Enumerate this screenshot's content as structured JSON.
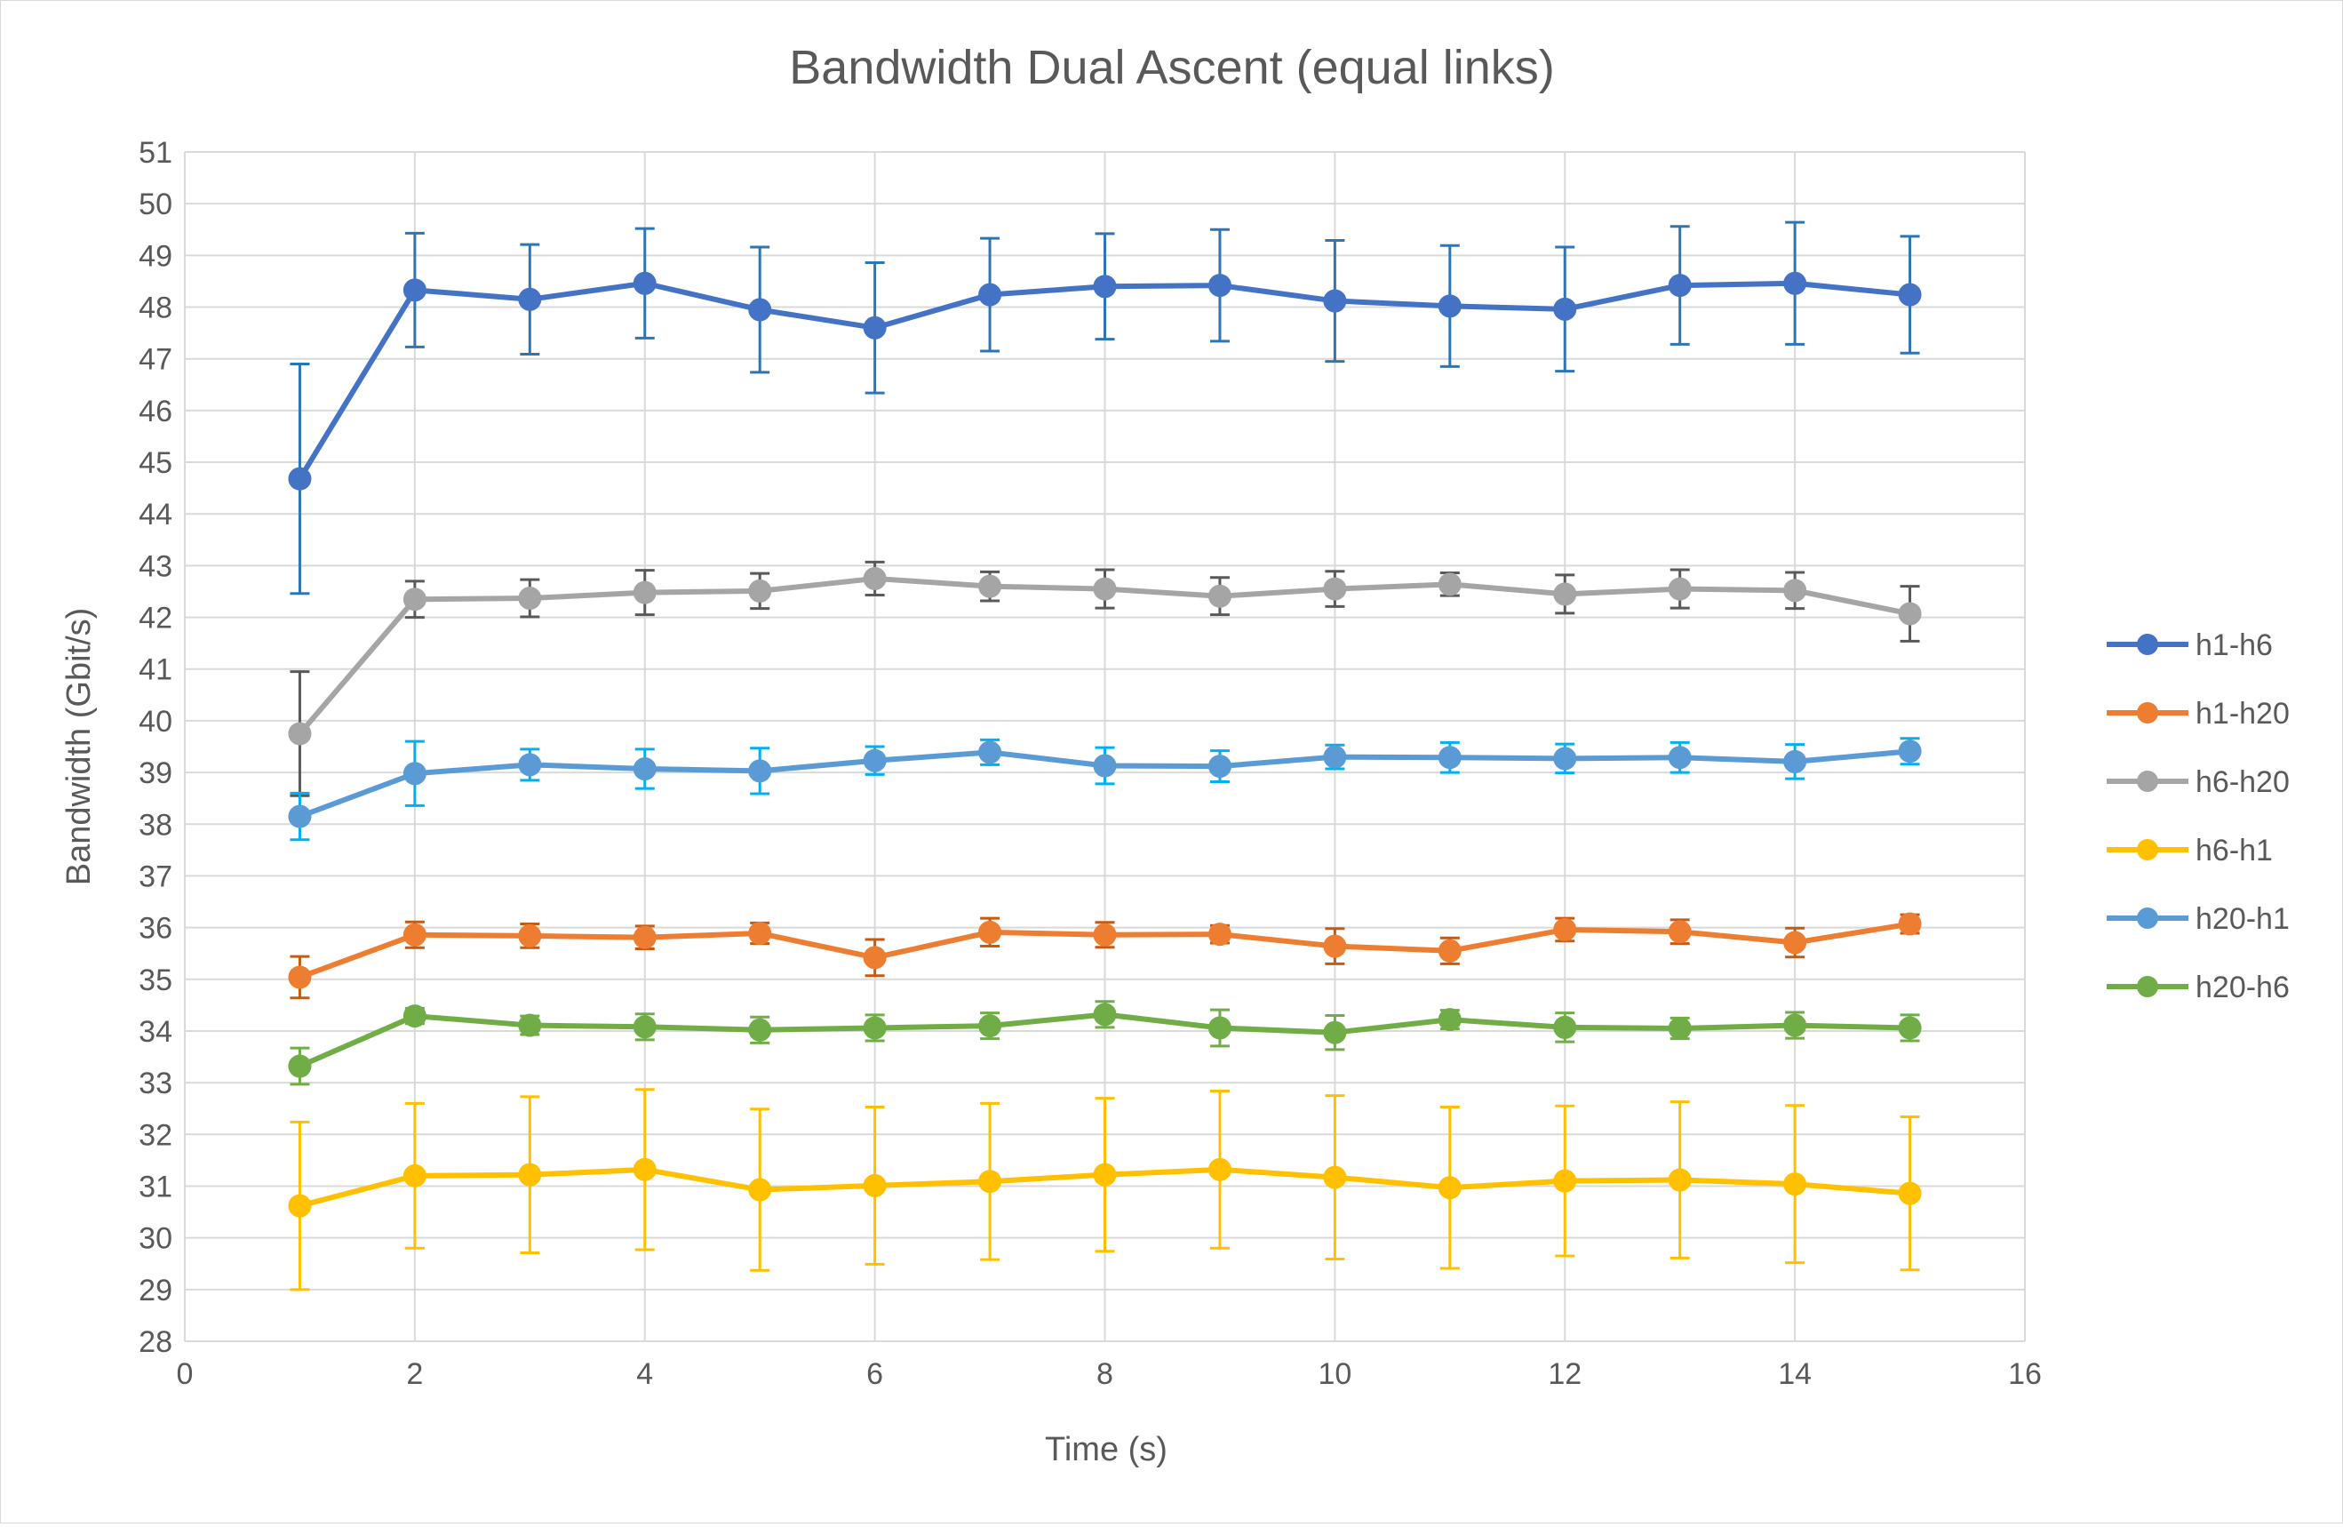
{
  "chart_data": {
    "type": "line",
    "title": "Bandwidth Dual Ascent (equal links)",
    "xlabel": "Time (s)",
    "ylabel": "Bandwidth (Gbit/s)",
    "xlim": [
      0,
      16
    ],
    "ylim": [
      28,
      51
    ],
    "xticks": [
      0,
      2,
      4,
      6,
      8,
      10,
      12,
      14,
      16
    ],
    "yticks": [
      28,
      29,
      30,
      31,
      32,
      33,
      34,
      35,
      36,
      37,
      38,
      39,
      40,
      41,
      42,
      43,
      44,
      45,
      46,
      47,
      48,
      49,
      50,
      51
    ],
    "grid": true,
    "legend_position": "right",
    "x": [
      1,
      2,
      3,
      4,
      5,
      6,
      7,
      8,
      9,
      10,
      11,
      12,
      13,
      14,
      15
    ],
    "series": [
      {
        "name": "h1-h6",
        "color": "#4472C4",
        "error_color": "#2E75B6",
        "values": [
          44.68,
          48.33,
          48.15,
          48.46,
          47.95,
          47.6,
          48.24,
          48.4,
          48.42,
          48.12,
          48.02,
          47.96,
          48.42,
          48.46,
          48.24
        ],
        "error": [
          2.22,
          1.1,
          1.06,
          1.06,
          1.21,
          1.26,
          1.09,
          1.02,
          1.08,
          1.17,
          1.17,
          1.2,
          1.14,
          1.18,
          1.13
        ]
      },
      {
        "name": "h1-h20",
        "color": "#ED7D31",
        "error_color": "#C55A11",
        "values": [
          35.04,
          35.86,
          35.84,
          35.81,
          35.89,
          35.42,
          35.91,
          35.86,
          35.87,
          35.64,
          35.55,
          35.96,
          35.92,
          35.71,
          36.07
        ],
        "error": [
          0.4,
          0.25,
          0.23,
          0.22,
          0.2,
          0.35,
          0.27,
          0.24,
          0.17,
          0.34,
          0.25,
          0.22,
          0.23,
          0.28,
          0.18
        ]
      },
      {
        "name": "h6-h20",
        "color": "#A5A5A5",
        "error_color": "#595959",
        "values": [
          39.75,
          42.35,
          42.37,
          42.48,
          42.51,
          42.75,
          42.6,
          42.55,
          42.41,
          42.55,
          42.64,
          42.45,
          42.55,
          42.52,
          42.07
        ],
        "error": [
          1.2,
          0.35,
          0.36,
          0.43,
          0.34,
          0.32,
          0.28,
          0.37,
          0.36,
          0.34,
          0.22,
          0.37,
          0.37,
          0.35,
          0.53
        ]
      },
      {
        "name": "h6-h1",
        "color": "#FFC000",
        "error_color": "#FFC000",
        "values": [
          30.62,
          31.2,
          31.22,
          31.32,
          30.93,
          31.01,
          31.09,
          31.22,
          31.32,
          31.17,
          30.97,
          31.1,
          31.12,
          31.04,
          30.86
        ],
        "error": [
          1.62,
          1.4,
          1.51,
          1.55,
          1.56,
          1.52,
          1.51,
          1.48,
          1.52,
          1.58,
          1.56,
          1.45,
          1.51,
          1.52,
          1.48
        ]
      },
      {
        "name": "h20-h1",
        "color": "#5B9BD5",
        "error_color": "#00B0F0",
        "values": [
          38.15,
          38.98,
          39.15,
          39.07,
          39.03,
          39.23,
          39.39,
          39.13,
          39.12,
          39.3,
          39.29,
          39.27,
          39.29,
          39.21,
          39.41
        ],
        "error": [
          0.45,
          0.62,
          0.3,
          0.38,
          0.44,
          0.27,
          0.24,
          0.35,
          0.3,
          0.23,
          0.29,
          0.28,
          0.29,
          0.33,
          0.25
        ]
      },
      {
        "name": "h20-h6",
        "color": "#70AD47",
        "error_color": "#70AD47",
        "values": [
          33.32,
          34.29,
          34.11,
          34.08,
          34.02,
          34.06,
          34.1,
          34.32,
          34.06,
          33.97,
          34.22,
          34.07,
          34.05,
          34.11,
          34.06
        ],
        "error": [
          0.35,
          0.15,
          0.18,
          0.25,
          0.25,
          0.25,
          0.25,
          0.25,
          0.35,
          0.33,
          0.18,
          0.28,
          0.2,
          0.25,
          0.25
        ]
      }
    ]
  }
}
